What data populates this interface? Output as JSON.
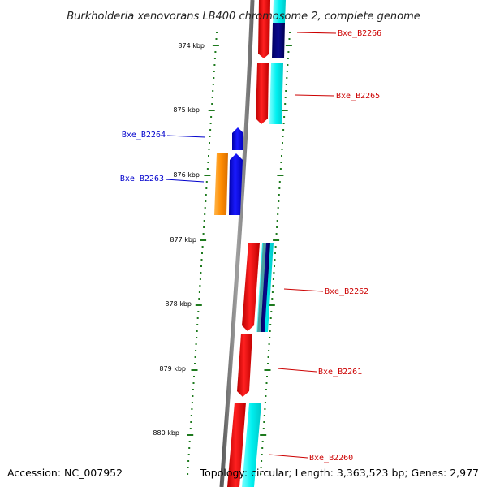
{
  "title": "Burkholderia xenovorans LB400 chromosome 2, complete genome",
  "footer": {
    "accession": "Accession: NC_007952",
    "topology": "Topology: circular; Length: 3,363,523 bp; Genes: 2,977"
  },
  "colors": {
    "background": "#ffffff",
    "backbone": "#8a8a8a",
    "tick": "#1e7a1e",
    "forward_label": "#cc0000",
    "reverse_label": "#0000cc",
    "cds": "#ff0000",
    "cds_reverse": "#0000ff",
    "gene": "#00ffff",
    "gene_reverse": "#ff8800",
    "gene_other": "#000080",
    "rna": "#4aa0a0"
  },
  "scale": {
    "unit": "kbp",
    "markers": [
      "874 kbp",
      "875 kbp",
      "876 kbp",
      "877 kbp",
      "878 kbp",
      "879 kbp",
      "880 kbp"
    ]
  },
  "genes": [
    {
      "id": "Bxe_B2266",
      "strand": "forward"
    },
    {
      "id": "Bxe_B2265",
      "strand": "forward"
    },
    {
      "id": "Bxe_B2264",
      "strand": "reverse"
    },
    {
      "id": "Bxe_B2263",
      "strand": "reverse"
    },
    {
      "id": "Bxe_B2262",
      "strand": "forward"
    },
    {
      "id": "Bxe_B2261",
      "strand": "forward"
    },
    {
      "id": "Bxe_B2260",
      "strand": "forward"
    }
  ]
}
